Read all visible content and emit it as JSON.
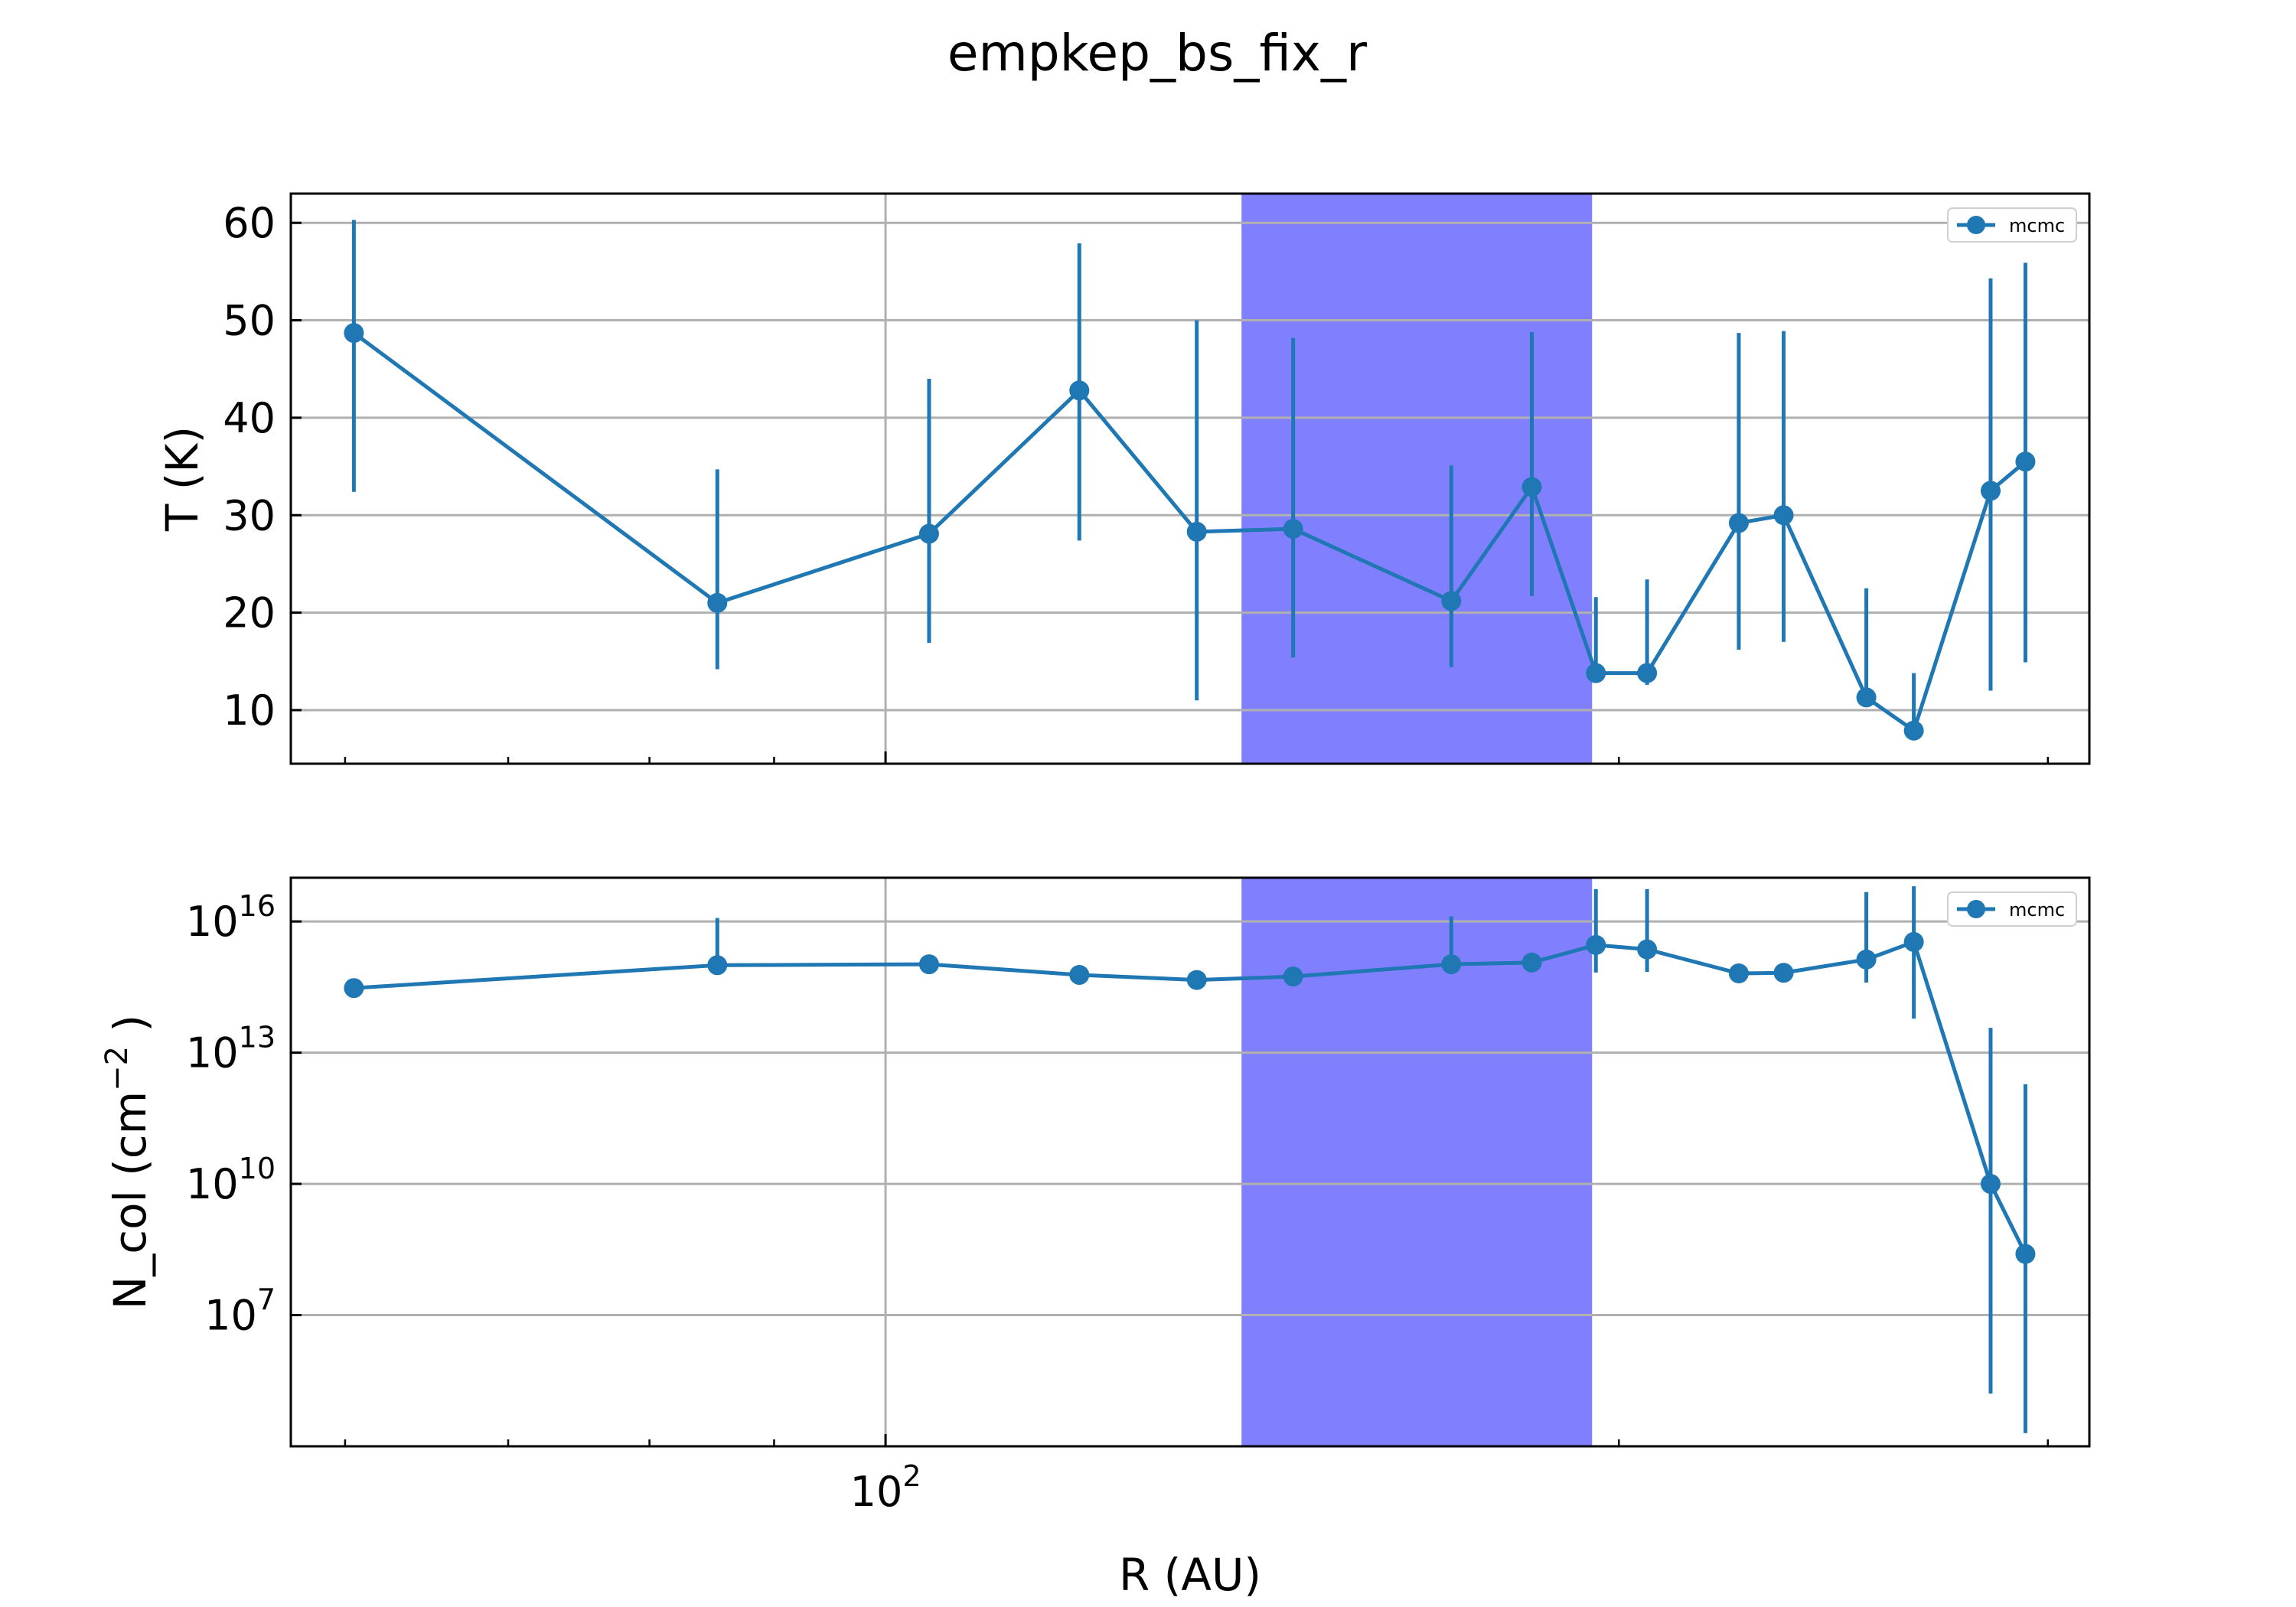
{
  "title": "empkep_bs_fix_r",
  "colors": {
    "series": "#1f77b4",
    "band": "#8080ff",
    "grid": "#b0b0b0",
    "axes": "#000000"
  },
  "chart_data": [
    {
      "type": "line",
      "panel": "top",
      "xlabel": "R (AU)",
      "ylabel": "T (K)",
      "xscale": "log",
      "yscale": "linear",
      "xlim": [
        57,
        312
      ],
      "ylim": [
        4.5,
        63
      ],
      "grid": true,
      "legend": {
        "location": "top-right",
        "entries": [
          "mcmc"
        ]
      },
      "shaded_band": {
        "x_range": [
          140,
          195
        ],
        "color": "#8080ff"
      },
      "yticks": [
        10,
        20,
        30,
        40,
        50,
        60
      ],
      "ytick_labels": [
        "10",
        "20",
        "30",
        "40",
        "50",
        "60"
      ],
      "series": [
        {
          "name": "mcmc",
          "marker": "circle",
          "x": [
            60.5,
            85.3,
            104.2,
            120.1,
            134.2,
            147.0,
            170.7,
            184.2,
            195.7,
            205.4,
            224.0,
            233.7,
            252.7,
            264.3,
            284.2,
            293.7
          ],
          "y": [
            48.7,
            21.0,
            28.1,
            42.8,
            28.3,
            28.6,
            21.2,
            32.9,
            13.8,
            13.8,
            29.2,
            30.0,
            11.3,
            7.9,
            32.5,
            35.5
          ],
          "yerr_low": [
            16.3,
            6.8,
            11.2,
            15.4,
            17.3,
            13.2,
            6.8,
            11.2,
            0.6,
            1.2,
            13.0,
            13.0,
            0.6,
            0.5,
            20.5,
            20.6
          ],
          "yerr_high": [
            11.6,
            13.7,
            15.9,
            15.1,
            21.7,
            19.6,
            13.9,
            15.9,
            7.8,
            9.6,
            19.5,
            18.9,
            11.2,
            5.9,
            21.8,
            20.4
          ]
        }
      ]
    },
    {
      "type": "line",
      "panel": "bottom",
      "xlabel": "R (AU)",
      "ylabel": "N_col (cm$^{-2}$ )",
      "xscale": "log",
      "yscale": "log",
      "xlim": [
        57,
        312
      ],
      "ylim": [
        10000.0,
        1e+17
      ],
      "grid": true,
      "legend": {
        "location": "top-right",
        "entries": [
          "mcmc"
        ]
      },
      "shaded_band": {
        "x_range": [
          140,
          195
        ],
        "color": "#8080ff"
      },
      "xticks": [
        100
      ],
      "xtick_label_base": "10",
      "xtick_label_exp": "2",
      "yticks": [
        10000000.0,
        10000000000.0,
        10000000000000.0,
        1e+16
      ],
      "ytick_label_base": "10",
      "ytick_label_exps": [
        "7",
        "10",
        "13",
        "16"
      ],
      "ylabel_parts": {
        "pre": "N_col (cm",
        "sup": "−2",
        "post": " )"
      },
      "series": [
        {
          "name": "mcmc",
          "marker": "circle",
          "x": [
            60.5,
            85.3,
            104.2,
            120.1,
            134.2,
            147.0,
            170.7,
            184.2,
            195.7,
            205.4,
            224.0,
            233.7,
            252.7,
            264.3,
            284.2,
            293.7
          ],
          "y": [
            300000000000000.0,
            1000000000000000.0,
            1050000000000000.0,
            600000000000000.0,
            460000000000000.0,
            550000000000000.0,
            1050000000000000.0,
            1150000000000000.0,
            2900000000000000.0,
            2300000000000000.0,
            650000000000000.0,
            670000000000000.0,
            1350000000000000.0,
            3400000000000000.0,
            10000000000.0,
            250000000.0
          ],
          "y_low": [
            null,
            null,
            null,
            null,
            null,
            null,
            null,
            null,
            680000000000000.0,
            700000000000000.0,
            null,
            null,
            400000000000000.0,
            60000000000000.0,
            160000.0,
            20000.0
          ],
          "y_high": [
            null,
            1.2e+16,
            null,
            null,
            null,
            null,
            1.3e+16,
            null,
            5.5e+16,
            5.5e+16,
            null,
            null,
            4.7e+16,
            6.4e+16,
            37000000000000.0,
            1900000000000.0
          ]
        }
      ]
    }
  ]
}
